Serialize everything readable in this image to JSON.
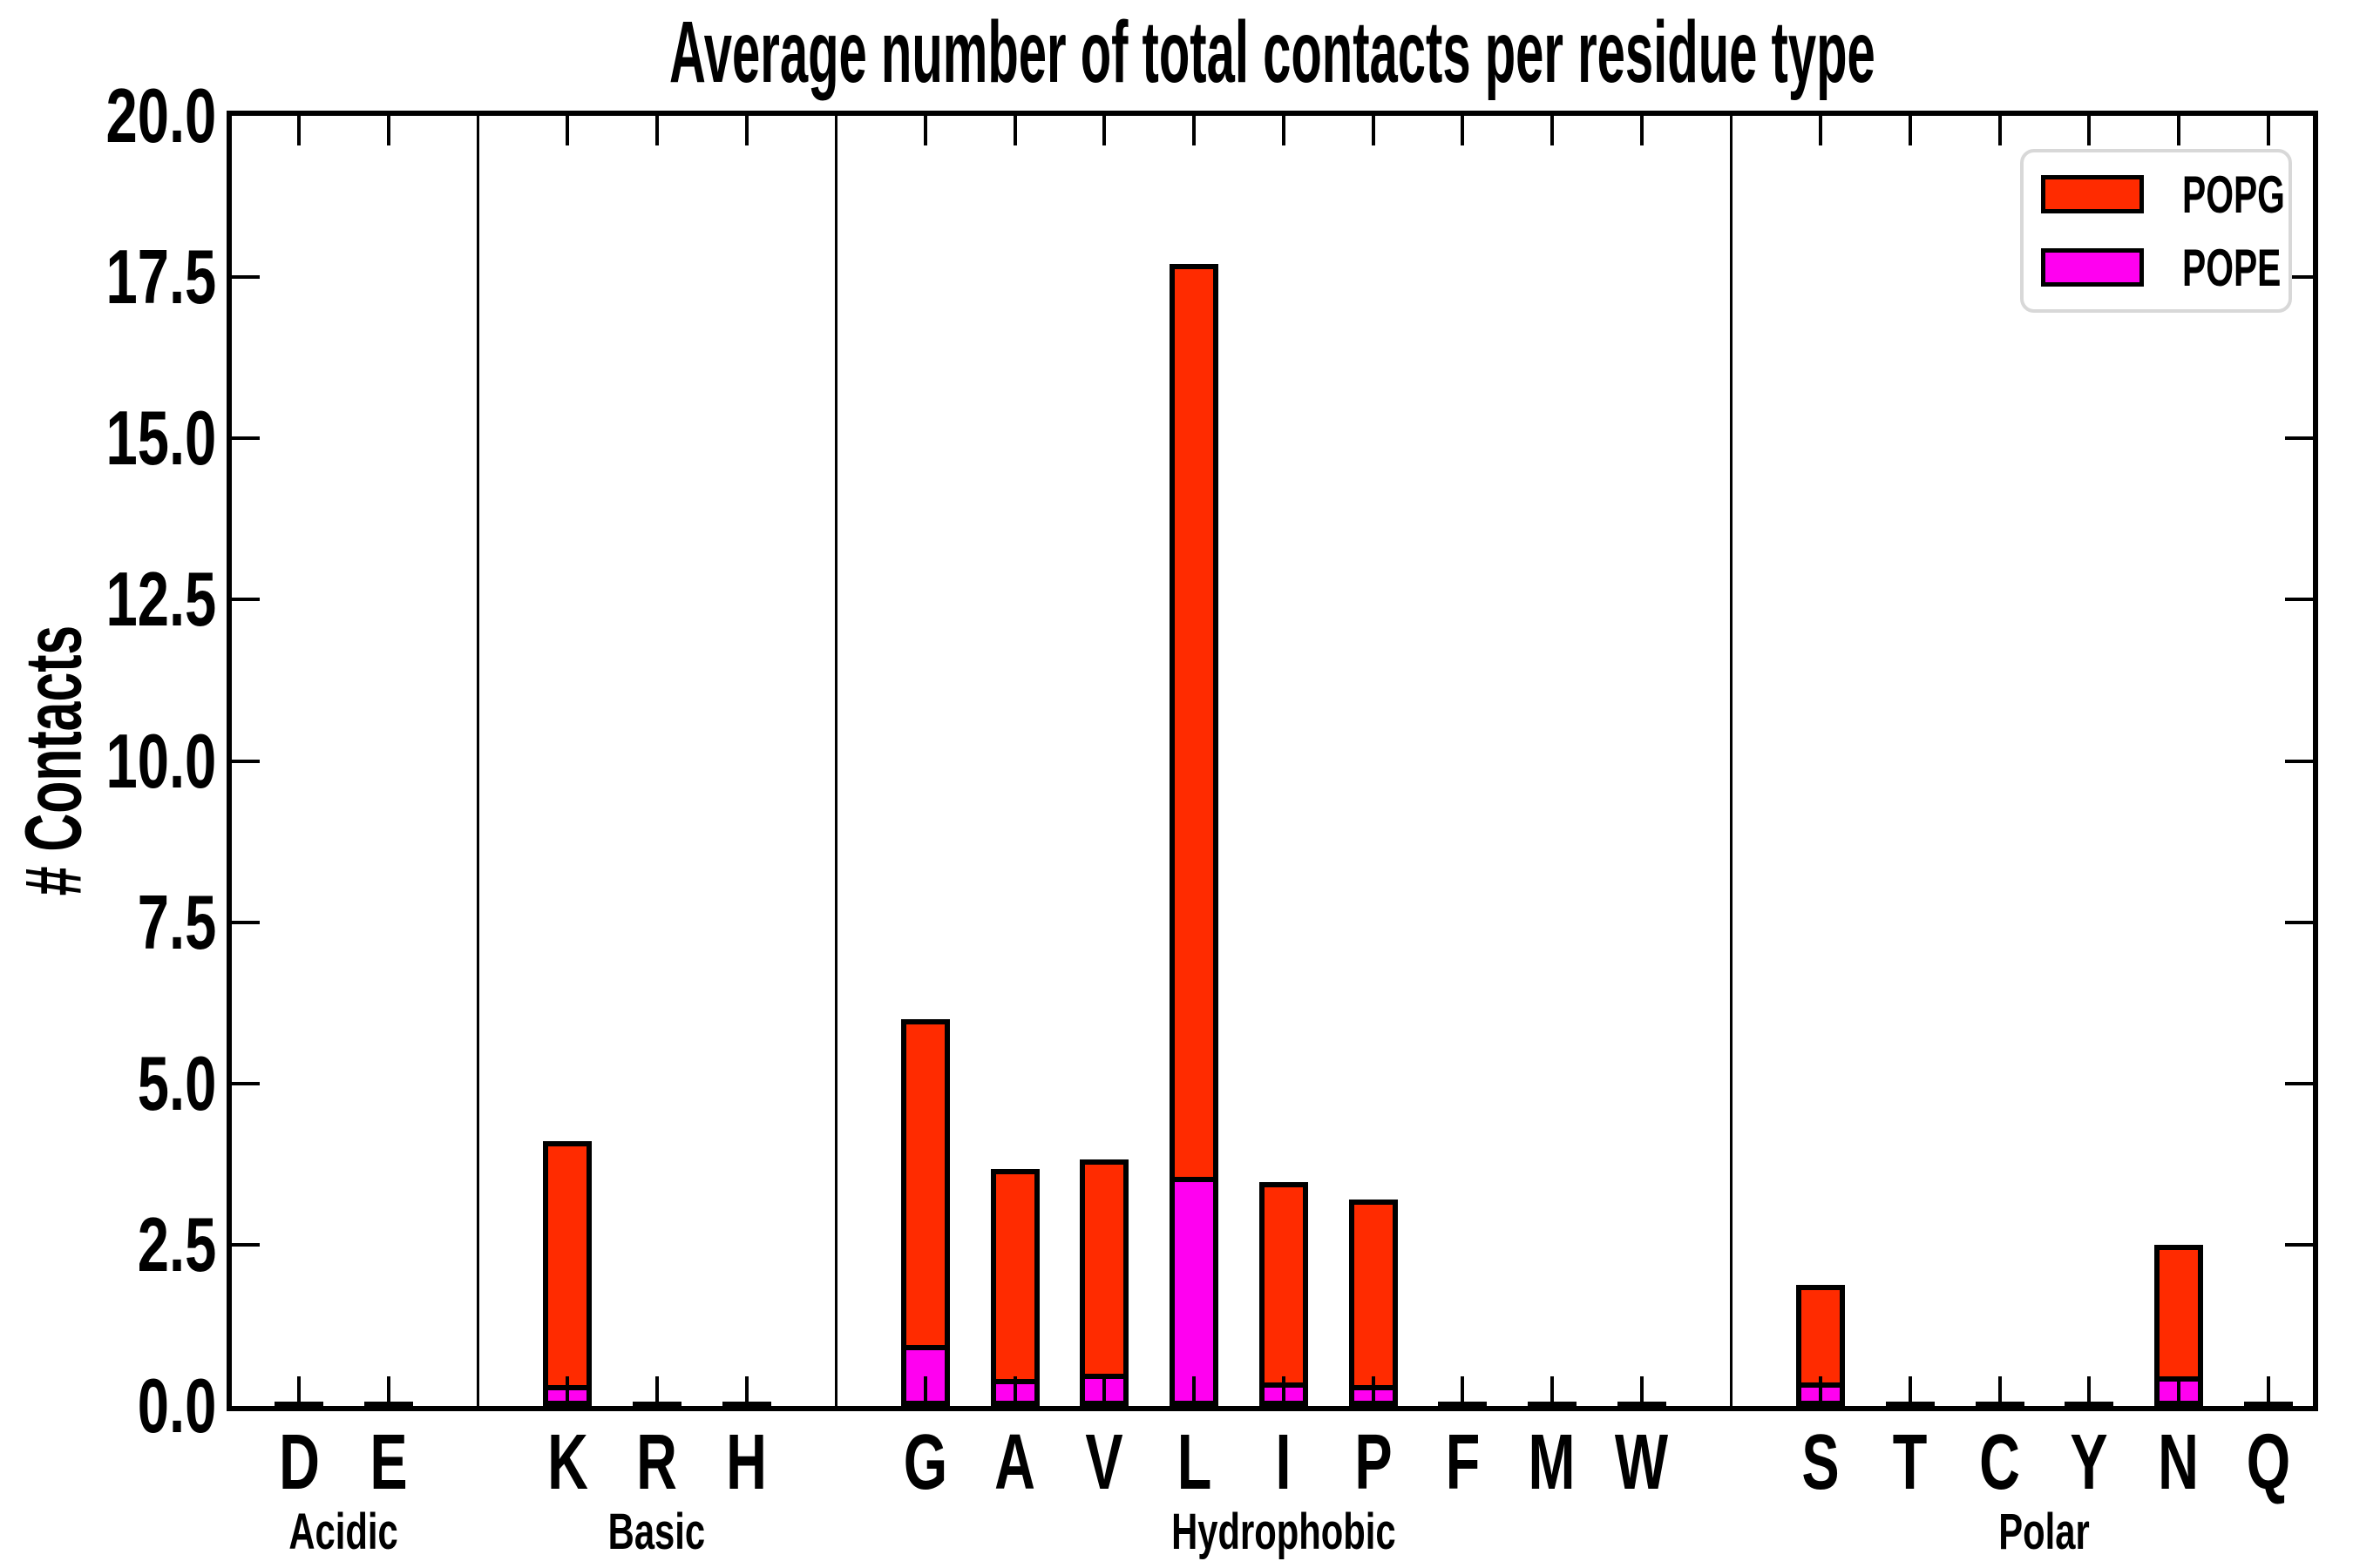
{
  "title": "Average number of total contacts per residue type",
  "ylabel": "# Contacts",
  "legend": {
    "position": "upper right",
    "items": [
      {
        "label": "POPG",
        "color": "#ff2b00"
      },
      {
        "label": "POPE",
        "color": "#ff00f0"
      }
    ]
  },
  "colors": {
    "POPG": "#ff2b00",
    "POPE": "#ff00f0",
    "axis": "#000000",
    "legend_border": "#d8d8d8",
    "background": "#ffffff"
  },
  "chart_data": {
    "type": "bar",
    "stacked": true,
    "ylim": [
      0,
      20
    ],
    "yticks": [
      0.0,
      2.5,
      5.0,
      7.5,
      10.0,
      12.5,
      15.0,
      17.5,
      20.0
    ],
    "ytick_labels": [
      "0.0",
      "2.5",
      "5.0",
      "7.5",
      "10.0",
      "12.5",
      "15.0",
      "17.5",
      "20.0"
    ],
    "grid": false,
    "series_order_bottom_to_top": [
      "POPE",
      "POPG"
    ],
    "groups": [
      {
        "label": "Acidic",
        "residues": [
          {
            "label": "D",
            "POPE": 0.0,
            "POPG": 0.05
          },
          {
            "label": "E",
            "POPE": 0.0,
            "POPG": 0.05
          }
        ]
      },
      {
        "label": "Basic",
        "residues": [
          {
            "label": "K",
            "POPE": 0.33,
            "POPG": 3.77
          },
          {
            "label": "R",
            "POPE": 0.0,
            "POPG": 0.04
          },
          {
            "label": "H",
            "POPE": 0.0,
            "POPG": 0.04
          }
        ]
      },
      {
        "label": "Hydrophobic",
        "residues": [
          {
            "label": "G",
            "POPE": 0.95,
            "POPG": 5.05
          },
          {
            "label": "A",
            "POPE": 0.42,
            "POPG": 3.25
          },
          {
            "label": "V",
            "POPE": 0.5,
            "POPG": 3.32
          },
          {
            "label": "L",
            "POPE": 3.55,
            "POPG": 14.15
          },
          {
            "label": "I",
            "POPE": 0.37,
            "POPG": 3.1
          },
          {
            "label": "P",
            "POPE": 0.33,
            "POPG": 2.87
          },
          {
            "label": "F",
            "POPE": 0.0,
            "POPG": 0.05
          },
          {
            "label": "M",
            "POPE": 0.0,
            "POPG": 0.04
          },
          {
            "label": "W",
            "POPE": 0.0,
            "POPG": 0.04
          }
        ]
      },
      {
        "label": "Polar",
        "residues": [
          {
            "label": "S",
            "POPE": 0.36,
            "POPG": 1.52
          },
          {
            "label": "T",
            "POPE": 0.0,
            "POPG": 0.04
          },
          {
            "label": "C",
            "POPE": 0.0,
            "POPG": 0.04
          },
          {
            "label": "Y",
            "POPE": 0.0,
            "POPG": 0.05
          },
          {
            "label": "N",
            "POPE": 0.46,
            "POPG": 2.04
          },
          {
            "label": "Q",
            "POPE": 0.0,
            "POPG": 0.04
          }
        ]
      }
    ]
  }
}
